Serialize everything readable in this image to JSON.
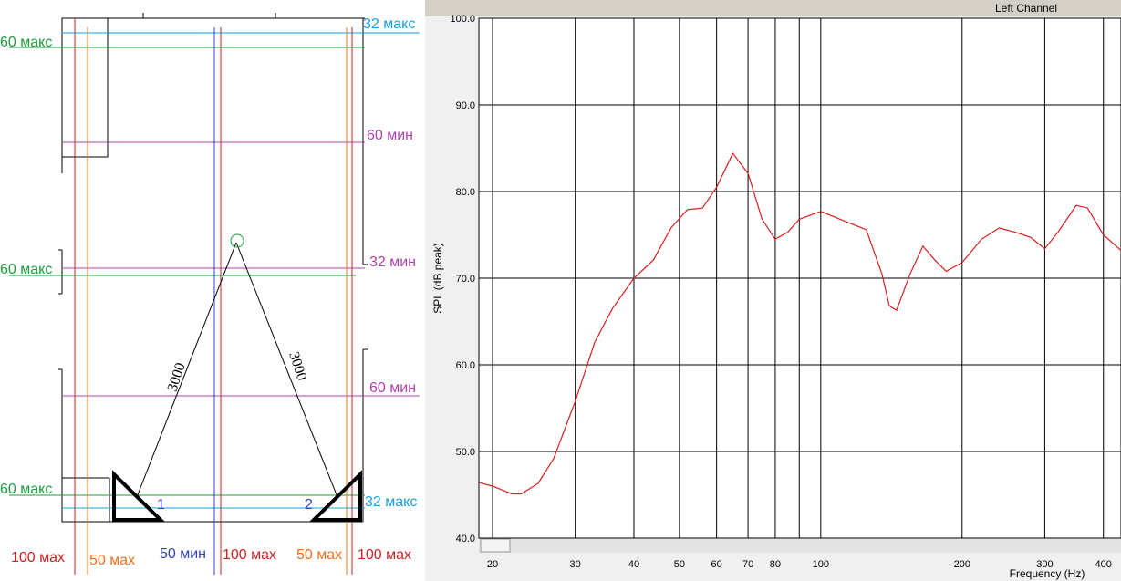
{
  "diagram": {
    "labels": [
      "60 макс",
      "32 макс",
      "60 мин",
      "60 макс",
      "32 мин",
      "60 мин",
      "60 макс",
      "32 макс",
      "3000",
      "3000",
      "1",
      "2",
      "100 мах",
      "50 мах",
      "50 мин",
      "100 мах",
      "50 мах",
      "100 мах"
    ]
  },
  "chart_data": {
    "type": "line",
    "title": "Left Channel",
    "ylabel": "SPL (dB peak)",
    "xlabel": "Frequency (Hz)",
    "xscale": "log",
    "grid": true,
    "color": "#d81e1e",
    "xlim": [
      18.7,
      436
    ],
    "ylim": [
      40,
      100
    ],
    "xticks": [
      20,
      30,
      40,
      50,
      60,
      70,
      80,
      100,
      200,
      300,
      400
    ],
    "minor_xticks": [
      90
    ],
    "yticks": [
      {
        "value": 40,
        "label": "40.0"
      },
      {
        "value": 50,
        "label": "50.0"
      },
      {
        "value": 60,
        "label": "60.0"
      },
      {
        "value": 70,
        "label": "70.0"
      },
      {
        "value": 80,
        "label": "80.0"
      },
      {
        "value": 90,
        "label": "90.0"
      },
      {
        "value": 100,
        "label": "100.0"
      }
    ],
    "x": [
      18.7,
      20,
      22,
      23,
      25,
      27,
      30,
      33,
      36,
      40,
      44,
      48,
      52,
      56,
      60,
      65,
      70,
      75,
      80,
      85,
      90,
      100,
      110,
      125,
      135,
      140,
      145,
      155,
      165,
      175,
      185,
      200,
      220,
      240,
      260,
      280,
      300,
      320,
      350,
      370,
      400,
      436
    ],
    "values": [
      46.4,
      46.0,
      45.1,
      45.1,
      46.3,
      49.2,
      55.8,
      62.6,
      66.5,
      70.0,
      72.1,
      75.8,
      77.9,
      78.1,
      80.5,
      84.4,
      82.1,
      76.8,
      74.5,
      75.3,
      76.8,
      77.7,
      76.8,
      75.6,
      70.5,
      66.8,
      66.3,
      70.5,
      73.7,
      72.1,
      70.8,
      71.8,
      74.5,
      75.8,
      75.3,
      74.7,
      73.4,
      75.3,
      78.4,
      78.1,
      75.0,
      73.2
    ]
  }
}
